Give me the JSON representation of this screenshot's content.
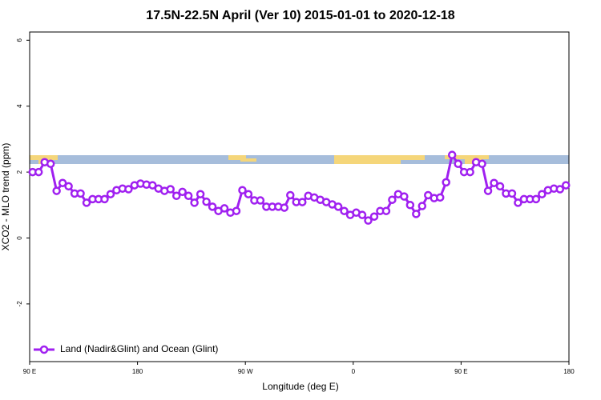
{
  "chart_data": {
    "type": "line",
    "title": "17.5N-22.5N April (Ver 10)   2015-01-01 to 2020-12-18",
    "x_label": "Longitude (deg E)",
    "y_label": "XCO2 - MLO trend (ppm)",
    "xlim": [
      90,
      540
    ],
    "xticks": [
      {
        "value": 90,
        "label": "90 E"
      },
      180,
      {
        "value": 270,
        "label": "90 W"
      },
      {
        "value": 360,
        "label": "0"
      },
      {
        "value": 450,
        "label": "90 E"
      },
      {
        "value": 540,
        "label": "180"
      }
    ],
    "ylim": [
      -3.75,
      6.25
    ],
    "yticks": [
      -2,
      0,
      2,
      4,
      6
    ],
    "legend": "bottom-left",
    "series": [
      {
        "name": "Land (Nadir&Glint) and Ocean (Glint)",
        "color": "#a020f0",
        "x": [
          92.5,
          97.5,
          102.5,
          107.5,
          112.5,
          117.5,
          122.5,
          127.5,
          132.5,
          137.5,
          142.5,
          147.5,
          152.5,
          157.5,
          162.5,
          167.5,
          172.5,
          177.5,
          182.5,
          187.5,
          192.5,
          197.5,
          202.5,
          207.5,
          212.5,
          217.5,
          222.5,
          227.5,
          232.5,
          237.5,
          242.5,
          247.5,
          252.5,
          257.5,
          262.5,
          267.5,
          272.5,
          277.5,
          282.5,
          287.5,
          292.5,
          297.5,
          302.5,
          307.5,
          312.5,
          317.5,
          322.5,
          327.5,
          332.5,
          337.5,
          342.5,
          347.5,
          352.5,
          357.5,
          362.5,
          367.5,
          372.5,
          377.5,
          382.5,
          387.5,
          392.5,
          397.5,
          402.5,
          407.5,
          412.5,
          417.5,
          422.5,
          427.5,
          432.5,
          437.5,
          442.5,
          447.5,
          452.5,
          457.5,
          462.5,
          467.5,
          472.5,
          477.5,
          482.5,
          487.5,
          492.5,
          497.5,
          502.5,
          507.5,
          512.5,
          517.5,
          522.5,
          527.5,
          532.5,
          537.5
        ],
        "values": [
          2.0,
          2.0,
          2.3,
          2.25,
          1.43,
          1.67,
          1.57,
          1.35,
          1.35,
          1.07,
          1.18,
          1.18,
          1.18,
          1.33,
          1.45,
          1.5,
          1.48,
          1.6,
          1.65,
          1.62,
          1.6,
          1.5,
          1.43,
          1.48,
          1.28,
          1.4,
          1.28,
          1.07,
          1.33,
          1.1,
          0.95,
          0.82,
          0.9,
          0.77,
          0.82,
          1.45,
          1.33,
          1.14,
          1.14,
          0.95,
          0.95,
          0.95,
          0.92,
          1.3,
          1.09,
          1.09,
          1.28,
          1.23,
          1.16,
          1.09,
          1.02,
          0.95,
          0.82,
          0.7,
          0.77,
          0.7,
          0.53,
          0.65,
          0.82,
          0.82,
          1.16,
          1.33,
          1.26,
          1.0,
          0.73,
          0.97,
          1.3,
          1.21,
          1.23,
          1.69,
          2.52,
          2.25,
          2.0,
          2.0,
          2.3,
          2.25,
          1.43,
          1.67,
          1.57,
          1.35,
          1.35,
          1.07,
          1.18,
          1.18,
          1.18,
          1.33,
          1.45,
          1.5,
          1.48,
          1.6
        ]
      }
    ]
  }
}
